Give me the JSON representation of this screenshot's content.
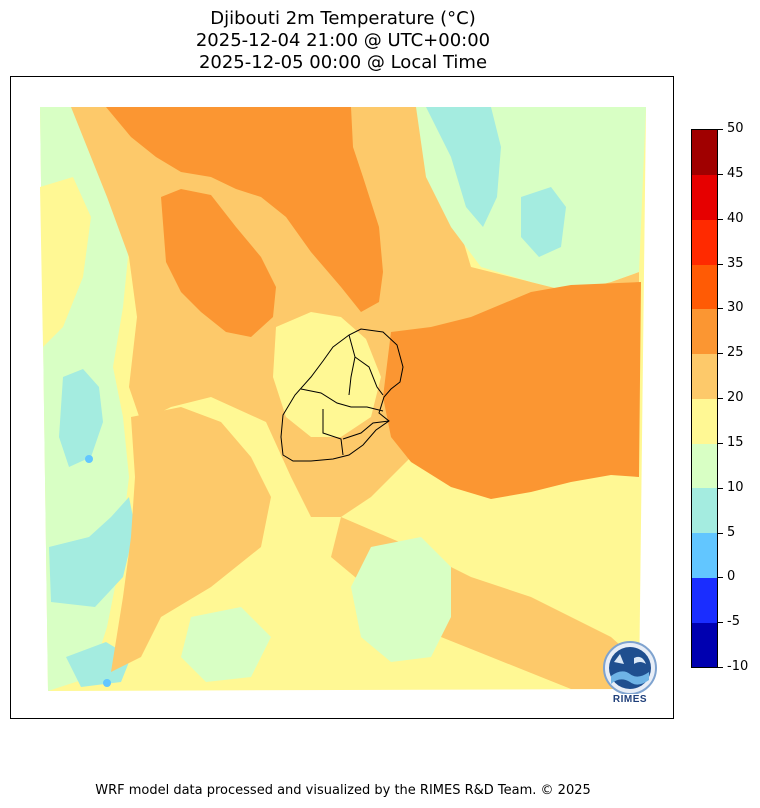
{
  "title": {
    "line1": "Djibouti 2m Temperature (°C)",
    "line2": "2025-12-04 21:00 @ UTC+00:00",
    "line3": "2025-12-05 00:00 @ Local Time"
  },
  "colorbar": {
    "levels": [
      -10,
      -5,
      0,
      5,
      10,
      15,
      20,
      25,
      30,
      35,
      40,
      45,
      50
    ],
    "tick_labels": [
      "-10",
      "-5",
      "0",
      "5",
      "10",
      "15",
      "20",
      "25",
      "30",
      "35",
      "40",
      "45",
      "50"
    ],
    "colors": [
      "#0000b0",
      "#1a2dff",
      "#62c6ff",
      "#a4ece0",
      "#d8ffc4",
      "#fff894",
      "#fdc96a",
      "#fb9632",
      "#ff5b05",
      "#ff2a00",
      "#e60000",
      "#a00000"
    ]
  },
  "map": {
    "region": "Djibouti",
    "variable": "2m Temperature",
    "units": "°C",
    "background_color": "#fff894"
  },
  "logo": {
    "text": "RIMES"
  },
  "footer": {
    "text": "WRF model data processed and visualized by the RIMES R&D Team. © 2025"
  }
}
